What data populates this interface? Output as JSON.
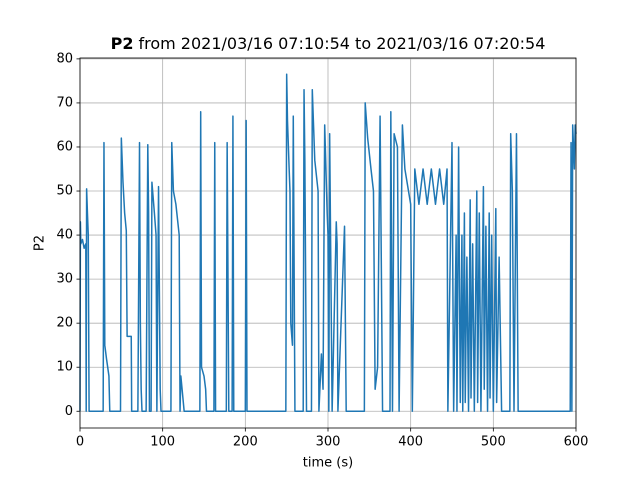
{
  "chart_data": {
    "type": "line",
    "title_bold": "P2",
    "title": "from 2021/03/16 07:10:54 to 2021/03/16 07:20:54",
    "xlabel": "time (s)",
    "ylabel": "P2",
    "color": "#1f77b4",
    "grid": true,
    "xlim": [
      0,
      600
    ],
    "xticks": [
      0,
      100,
      200,
      300,
      400,
      500,
      600
    ],
    "ylim": [
      -3.8,
      80.2
    ],
    "yticks": [
      0,
      10,
      20,
      30,
      40,
      50,
      60,
      70,
      80
    ],
    "x": [
      0,
      0.5,
      1,
      3,
      5,
      7,
      7.5,
      8,
      9,
      10,
      11,
      28,
      29,
      30,
      32,
      35,
      36,
      49,
      50,
      52,
      54,
      56,
      57,
      62,
      62.5,
      70,
      72,
      73,
      74,
      75,
      80,
      82,
      83,
      84,
      86,
      87,
      90,
      92,
      93,
      95,
      97,
      98,
      110,
      111,
      113,
      116,
      120,
      121,
      122,
      126,
      145,
      146,
      147,
      150,
      152,
      153,
      162,
      163,
      164,
      177,
      178,
      180,
      184,
      185,
      186,
      200,
      201,
      202,
      249,
      250,
      251,
      253,
      254,
      255,
      257,
      258,
      260,
      270,
      271,
      272,
      274,
      280,
      281,
      284,
      288,
      289,
      292,
      294,
      296,
      299,
      300,
      301,
      302,
      305,
      310,
      311,
      312,
      320,
      322,
      344,
      345,
      348,
      352,
      355,
      357,
      360,
      363,
      366,
      375,
      376,
      378,
      380,
      384,
      386,
      390,
      393,
      400,
      402,
      405,
      410,
      415,
      420,
      425,
      430,
      435,
      440,
      444,
      445,
      450,
      452,
      455,
      456,
      458,
      460,
      462,
      463,
      465,
      466,
      468,
      470,
      472,
      473,
      475,
      477,
      480,
      481,
      483,
      485,
      488,
      489,
      491,
      493,
      495,
      496,
      498,
      500,
      503,
      504,
      507,
      510,
      520,
      521,
      523,
      525,
      528,
      530,
      593,
      594,
      595,
      596,
      598,
      599,
      600
    ],
    "values": [
      0,
      43,
      38,
      39,
      37,
      38,
      0,
      50.5,
      45,
      40,
      0,
      0,
      61,
      15,
      12,
      8,
      0,
      0,
      62,
      52,
      45,
      41,
      17,
      17,
      0,
      0,
      61,
      20,
      5,
      0,
      0,
      60.5,
      45,
      0,
      0,
      52,
      45,
      40,
      0,
      51,
      5,
      0,
      0,
      61,
      50,
      47,
      40,
      0,
      8,
      0,
      0,
      68,
      10,
      8,
      5,
      0,
      0,
      61,
      0,
      0,
      61,
      0,
      0,
      67,
      0,
      0,
      66,
      0,
      0,
      76.5,
      66,
      55,
      50,
      20,
      15,
      67,
      0,
      0,
      73,
      57,
      0,
      0,
      73,
      57,
      50,
      0,
      13,
      5,
      65,
      45,
      40,
      0,
      63,
      0,
      43,
      38,
      0,
      42,
      0,
      0,
      70,
      62,
      55,
      50,
      5,
      10,
      67,
      0,
      0,
      68,
      0,
      63,
      60,
      0,
      65,
      55,
      47,
      0,
      55,
      47,
      55,
      47,
      55,
      47,
      55,
      47,
      55,
      0,
      61,
      0,
      40,
      0,
      60,
      2,
      40,
      0,
      45,
      2,
      35,
      0,
      48,
      3,
      38,
      0,
      50,
      2,
      45,
      0,
      51,
      5,
      42,
      0,
      45,
      3,
      40,
      0,
      46,
      2,
      35,
      0,
      0,
      63,
      50,
      0,
      63,
      0,
      0,
      61,
      0,
      65,
      55,
      65,
      63
    ]
  }
}
